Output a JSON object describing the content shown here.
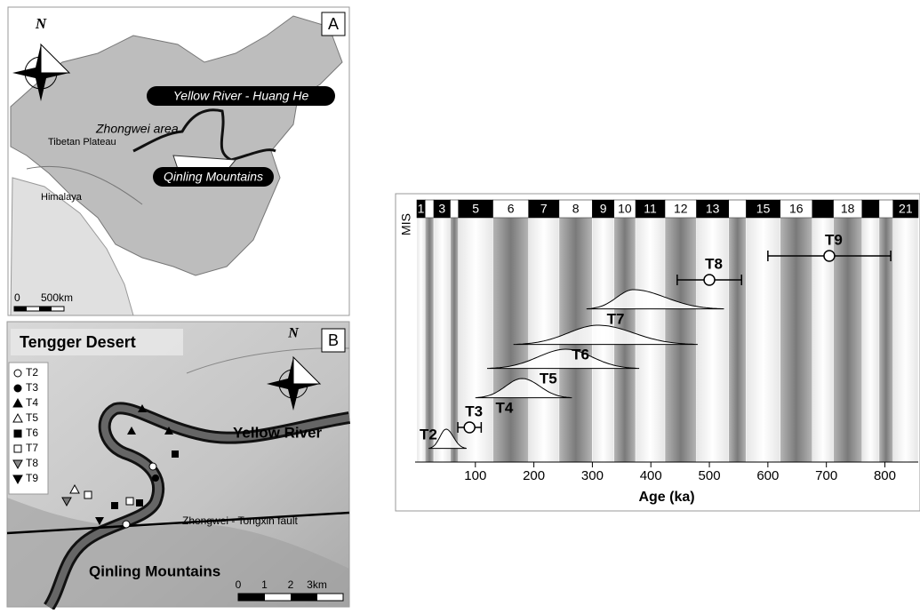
{
  "panel_a": {
    "label": "A",
    "north": "N",
    "river": "Yellow River - Huang He",
    "area": "Zhongwei area",
    "plateau": "Tibetan Plateau",
    "mountains": "Qinling Mountains",
    "himalaya": "Himalaya",
    "scale_0": "0",
    "scale_1": "500km"
  },
  "panel_b": {
    "label": "B",
    "north": "N",
    "desert": "Tengger Desert",
    "river": "Yellow River",
    "fault": "Zhongwei - Tongxin fault",
    "mountains": "Qinling Mountains",
    "legend": [
      "T2",
      "T3",
      "T4",
      "T5",
      "T6",
      "T7",
      "T8",
      "T9"
    ],
    "scale": [
      "0",
      "1",
      "2",
      "3km"
    ]
  },
  "chart_data": {
    "type": "age-chart",
    "mis_label": "MIS",
    "x_label": "Age (ka)",
    "xlim": [
      -3,
      857
    ],
    "xticks": [
      100,
      200,
      300,
      400,
      500,
      600,
      700,
      800
    ],
    "mis_stages": [
      {
        "label": "1",
        "start": 0,
        "end": 14
      },
      {
        "label": null,
        "start": 14,
        "end": 29
      },
      {
        "label": "3",
        "start": 29,
        "end": 57
      },
      {
        "label": null,
        "start": 57,
        "end": 71
      },
      {
        "label": "5",
        "start": 71,
        "end": 130
      },
      {
        "label": "6",
        "start": 130,
        "end": 191
      },
      {
        "label": "7",
        "start": 191,
        "end": 243
      },
      {
        "label": "8",
        "start": 243,
        "end": 300
      },
      {
        "label": "9",
        "start": 300,
        "end": 337
      },
      {
        "label": "10",
        "start": 337,
        "end": 374
      },
      {
        "label": "11",
        "start": 374,
        "end": 424
      },
      {
        "label": "12",
        "start": 424,
        "end": 478
      },
      {
        "label": "13",
        "start": 478,
        "end": 533
      },
      {
        "label": null,
        "start": 533,
        "end": 563
      },
      {
        "label": "15",
        "start": 563,
        "end": 621
      },
      {
        "label": "16",
        "start": 621,
        "end": 676
      },
      {
        "label": null,
        "start": 676,
        "end": 712
      },
      {
        "label": "18",
        "start": 712,
        "end": 761
      },
      {
        "label": null,
        "start": 761,
        "end": 790
      },
      {
        "label": null,
        "start": 790,
        "end": 814
      },
      {
        "label": "21",
        "start": 814,
        "end": 857
      }
    ],
    "series": [
      {
        "name": "T2",
        "kind": "distribution",
        "peak": 50,
        "range": [
          20,
          85
        ]
      },
      {
        "name": "T3",
        "kind": "point",
        "value": 90,
        "error": 20
      },
      {
        "name": "T4",
        "kind": "distribution",
        "peak": 180,
        "range": [
          100,
          265
        ]
      },
      {
        "name": "T5",
        "kind": "distribution",
        "peak": 255,
        "range": [
          120,
          380
        ]
      },
      {
        "name": "T6",
        "kind": "distribution",
        "peak": 310,
        "range": [
          165,
          480
        ]
      },
      {
        "name": "T7",
        "kind": "distribution",
        "peak": 370,
        "range": [
          290,
          525
        ]
      },
      {
        "name": "T8",
        "kind": "point",
        "value": 500,
        "error": 55
      },
      {
        "name": "T9",
        "kind": "point",
        "value": 705,
        "error": 105
      }
    ]
  }
}
